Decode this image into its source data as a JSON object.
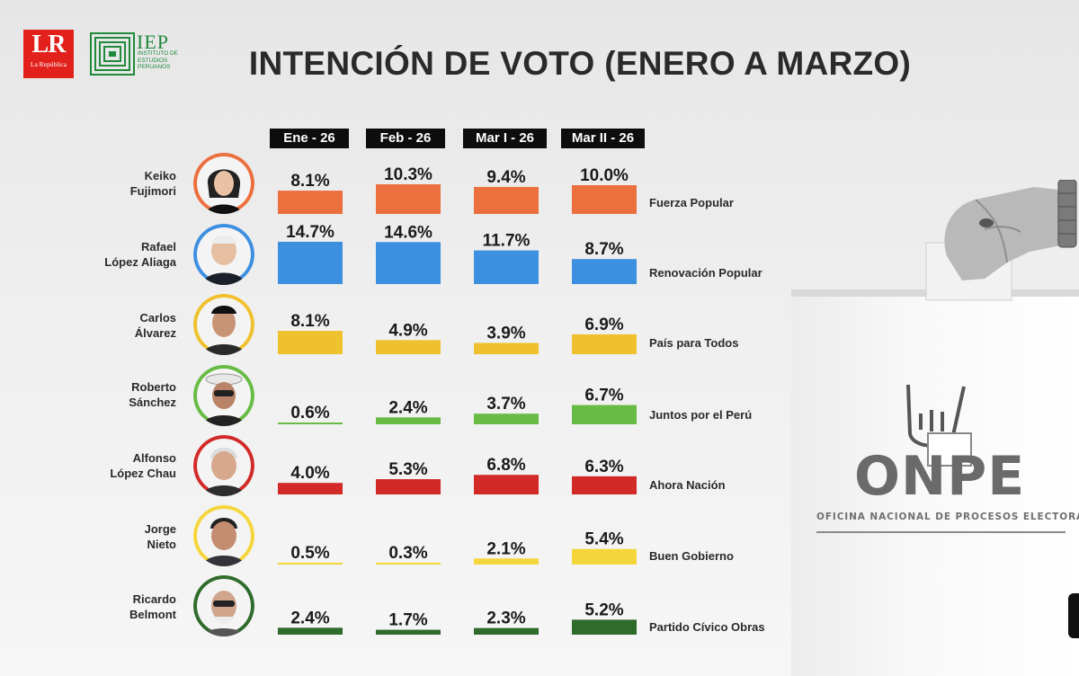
{
  "logos": {
    "lr_main": "LR",
    "lr_sub": "La República",
    "iep_main": "IEP",
    "iep_sub": "INSTITUTO DE ESTUDIOS PERUANOS"
  },
  "onpe": {
    "name": "ONPE",
    "subtitle": "OFICINA NACIONAL DE PROCESOS ELECTORALES"
  },
  "colors": {
    "Fuerza Popular": "#ec6f3e",
    "Renovación Popular": "#3d8fe0",
    "País para Todos": "#efc12e",
    "Juntos por el Perú": "#68bb45",
    "Ahora Nación": "#d22a27",
    "Buen Gobierno": "#f4d63a",
    "Partido Cívico Obras": "#2f6b2a"
  },
  "chart_data": {
    "type": "bar",
    "title": "INTENCIÓN DE VOTO (ENERO A MARZO)",
    "categories": [
      "Ene - 26",
      "Feb - 26",
      "Mar I - 26",
      "Mar II - 26"
    ],
    "unit": "%",
    "series": [
      {
        "candidate": [
          "Keiko",
          "Fujimori"
        ],
        "name": "Fuerza Popular",
        "values": [
          8.1,
          10.3,
          9.4,
          10.0
        ],
        "labels": [
          "8.1%",
          "10.3%",
          "9.4%",
          "10.0%"
        ]
      },
      {
        "candidate": [
          "Rafael",
          "López Aliaga"
        ],
        "name": "Renovación Popular",
        "values": [
          14.7,
          14.6,
          11.7,
          8.7
        ],
        "labels": [
          "14.7%",
          "14.6%",
          "11.7%",
          "8.7%"
        ]
      },
      {
        "candidate": [
          "Carlos",
          "Álvarez"
        ],
        "name": "País para Todos",
        "values": [
          8.1,
          4.9,
          3.9,
          6.9
        ],
        "labels": [
          "8.1%",
          "4.9%",
          "3.9%",
          "6.9%"
        ]
      },
      {
        "candidate": [
          "Roberto",
          "Sánchez"
        ],
        "name": "Juntos por el Perú",
        "values": [
          0.6,
          2.4,
          3.7,
          6.7
        ],
        "labels": [
          "0.6%",
          "2.4%",
          "3.7%",
          "6.7%"
        ]
      },
      {
        "candidate": [
          "Alfonso",
          "López Chau"
        ],
        "name": "Ahora Nación",
        "values": [
          4.0,
          5.3,
          6.8,
          6.3
        ],
        "labels": [
          "4.0%",
          "5.3%",
          "6.8%",
          "6.3%"
        ]
      },
      {
        "candidate": [
          "Jorge",
          "Nieto"
        ],
        "name": "Buen Gobierno",
        "values": [
          0.5,
          0.3,
          2.1,
          5.4
        ],
        "labels": [
          "0.5%",
          "0.3%",
          "2.1%",
          "5.4%"
        ]
      },
      {
        "candidate": [
          "Ricardo",
          "Belmont"
        ],
        "name": "Partido Cívico Obras",
        "values": [
          2.4,
          1.7,
          2.3,
          5.2
        ],
        "labels": [
          "2.4%",
          "1.7%",
          "2.3%",
          "5.2%"
        ]
      }
    ]
  }
}
